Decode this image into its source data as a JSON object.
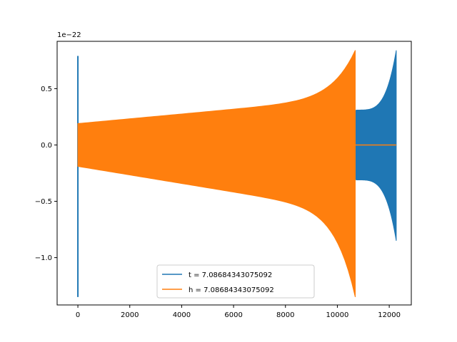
{
  "chart_data": {
    "type": "line",
    "title": "",
    "xlabel": "",
    "ylabel": "",
    "xlim": [
      -800,
      12850
    ],
    "ylim": [
      -1.42e-22,
      9.2e-23
    ],
    "x_ticks": [
      0,
      2000,
      4000,
      6000,
      8000,
      10000,
      12000
    ],
    "x_tick_labels": [
      "0",
      "2000",
      "4000",
      "6000",
      "8000",
      "10000",
      "12000"
    ],
    "y_ticks": [
      -1e-22,
      -5e-23,
      0.0,
      5e-23
    ],
    "y_tick_labels": [
      "−1.0",
      "−0.5",
      "0.0",
      "0.5"
    ],
    "y_offset_text": "1e−22",
    "grid": false,
    "legend_position": "lower center",
    "series": [
      {
        "name": "t = 7.08684343075092",
        "color": "#1f77b4",
        "spike_x": 0,
        "spike_y": [
          -1.35e-22,
          7.9e-23
        ],
        "envelope_start": 1.9e-23,
        "envelope_grow_x": 10700,
        "envelope_mid": 3.1e-23,
        "envelope_end_x": 12270,
        "envelope_peak": 8.4e-23,
        "envelope_trough": -8.5e-23
      },
      {
        "name": "h = 7.08684343075092",
        "color": "#ff7f0e",
        "envelope_start_x": 0,
        "envelope_start": 1.9e-23,
        "envelope_end_x": 10690,
        "envelope_peak": 8.4e-23,
        "envelope_trough": -1.35e-22,
        "flat_end_x": 12270,
        "flat_value": 0.0
      }
    ]
  }
}
